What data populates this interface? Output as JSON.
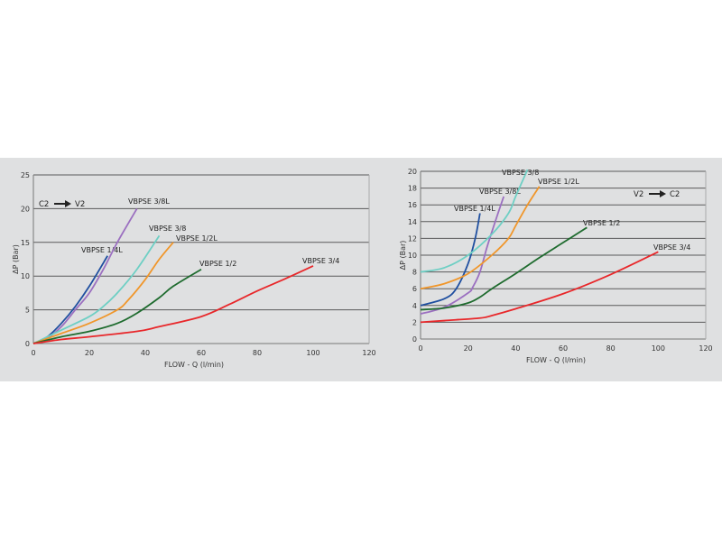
{
  "chart_data": [
    {
      "type": "line",
      "direction_label": {
        "from": "C2",
        "to": "V2"
      },
      "xlabel": "FLOW - Q (l/min)",
      "ylabel": "ΔP (Bar)",
      "xlim": [
        0,
        120
      ],
      "ylim": [
        0,
        25
      ],
      "xticks": [
        0,
        20,
        40,
        60,
        80,
        100,
        120
      ],
      "yticks": [
        0,
        5,
        10,
        15,
        20,
        25
      ],
      "grid": "horizontal",
      "series": [
        {
          "name": "VBPSE 1/4L",
          "color": "#1f4fa0",
          "x": [
            0,
            5,
            10,
            15,
            20,
            26.5
          ],
          "y": [
            0,
            1,
            3,
            5.5,
            8.5,
            13
          ]
        },
        {
          "name": "VBPSE 3/8L",
          "color": "#9b6fc0",
          "x": [
            0,
            5,
            10,
            15,
            20,
            25,
            30,
            37
          ],
          "y": [
            0,
            0.8,
            2.5,
            5,
            7.5,
            11,
            15,
            20
          ]
        },
        {
          "name": "VBPSE 3/8",
          "color": "#6ecfc4",
          "x": [
            0,
            10,
            20,
            25,
            30,
            37,
            45
          ],
          "y": [
            0,
            2,
            4,
            5.5,
            7.5,
            11,
            16
          ]
        },
        {
          "name": "VBPSE 1/2L",
          "color": "#f0962a",
          "x": [
            0,
            10,
            20,
            30,
            34,
            40,
            45,
            50
          ],
          "y": [
            0,
            1.5,
            3,
            5,
            6.5,
            9.5,
            12.5,
            15
          ]
        },
        {
          "name": "VBPSE 1/2",
          "color": "#1e6b2e",
          "x": [
            0,
            10,
            20,
            30,
            37,
            45,
            50,
            60
          ],
          "y": [
            0,
            1,
            1.8,
            3,
            4.5,
            6.8,
            8.5,
            11
          ]
        },
        {
          "name": "VBPSE 3/4",
          "color": "#e8272a",
          "x": [
            0,
            10,
            20,
            37,
            45,
            60,
            70,
            80,
            90,
            100
          ],
          "y": [
            0,
            0.6,
            1,
            1.8,
            2.5,
            4,
            5.8,
            7.8,
            9.6,
            11.5
          ]
        }
      ]
    },
    {
      "type": "line",
      "direction_label": {
        "from": "V2",
        "to": "C2"
      },
      "xlabel": "FLOW - Q (l/min)",
      "ylabel": "ΔP (Bar)",
      "xlim": [
        0,
        120
      ],
      "ylim": [
        0,
        20
      ],
      "xticks": [
        0,
        20,
        40,
        60,
        80,
        100,
        120
      ],
      "yticks": [
        0,
        2,
        4,
        6,
        8,
        10,
        12,
        14,
        16,
        18,
        20
      ],
      "grid": "horizontal",
      "series": [
        {
          "name": "VBPSE 1/4L",
          "color": "#1f4fa0",
          "x": [
            0,
            10,
            15,
            20,
            23,
            25
          ],
          "y": [
            4,
            4.8,
            6,
            9,
            12,
            15
          ]
        },
        {
          "name": "VBPSE 3/8L",
          "color": "#9b6fc0",
          "x": [
            0,
            10,
            20,
            22,
            25,
            28,
            32,
            35
          ],
          "y": [
            3,
            3.8,
            5.5,
            6.2,
            8,
            11,
            14.5,
            17
          ]
        },
        {
          "name": "VBPSE 3/8",
          "color": "#6ecfc4",
          "x": [
            0,
            10,
            20,
            30,
            37,
            40,
            45
          ],
          "y": [
            8,
            8.5,
            10,
            12.5,
            15,
            17,
            20.2
          ]
        },
        {
          "name": "VBPSE 1/2L",
          "color": "#f0962a",
          "x": [
            0,
            10,
            20,
            30,
            37,
            40,
            45,
            50
          ],
          "y": [
            6,
            6.6,
            7.8,
            10,
            12,
            13.5,
            16,
            18.2
          ]
        },
        {
          "name": "VBPSE 1/2",
          "color": "#1e6b2e",
          "x": [
            0,
            10,
            20,
            25,
            30,
            40,
            50,
            60,
            70
          ],
          "y": [
            3.5,
            3.7,
            4.3,
            5,
            6,
            7.8,
            9.7,
            11.5,
            13.3
          ]
        },
        {
          "name": "VBPSE 3/4",
          "color": "#e8272a",
          "x": [
            0,
            10,
            25,
            30,
            40,
            60,
            80,
            100
          ],
          "y": [
            2,
            2.2,
            2.5,
            2.8,
            3.6,
            5.4,
            7.7,
            10.4
          ]
        }
      ]
    }
  ]
}
